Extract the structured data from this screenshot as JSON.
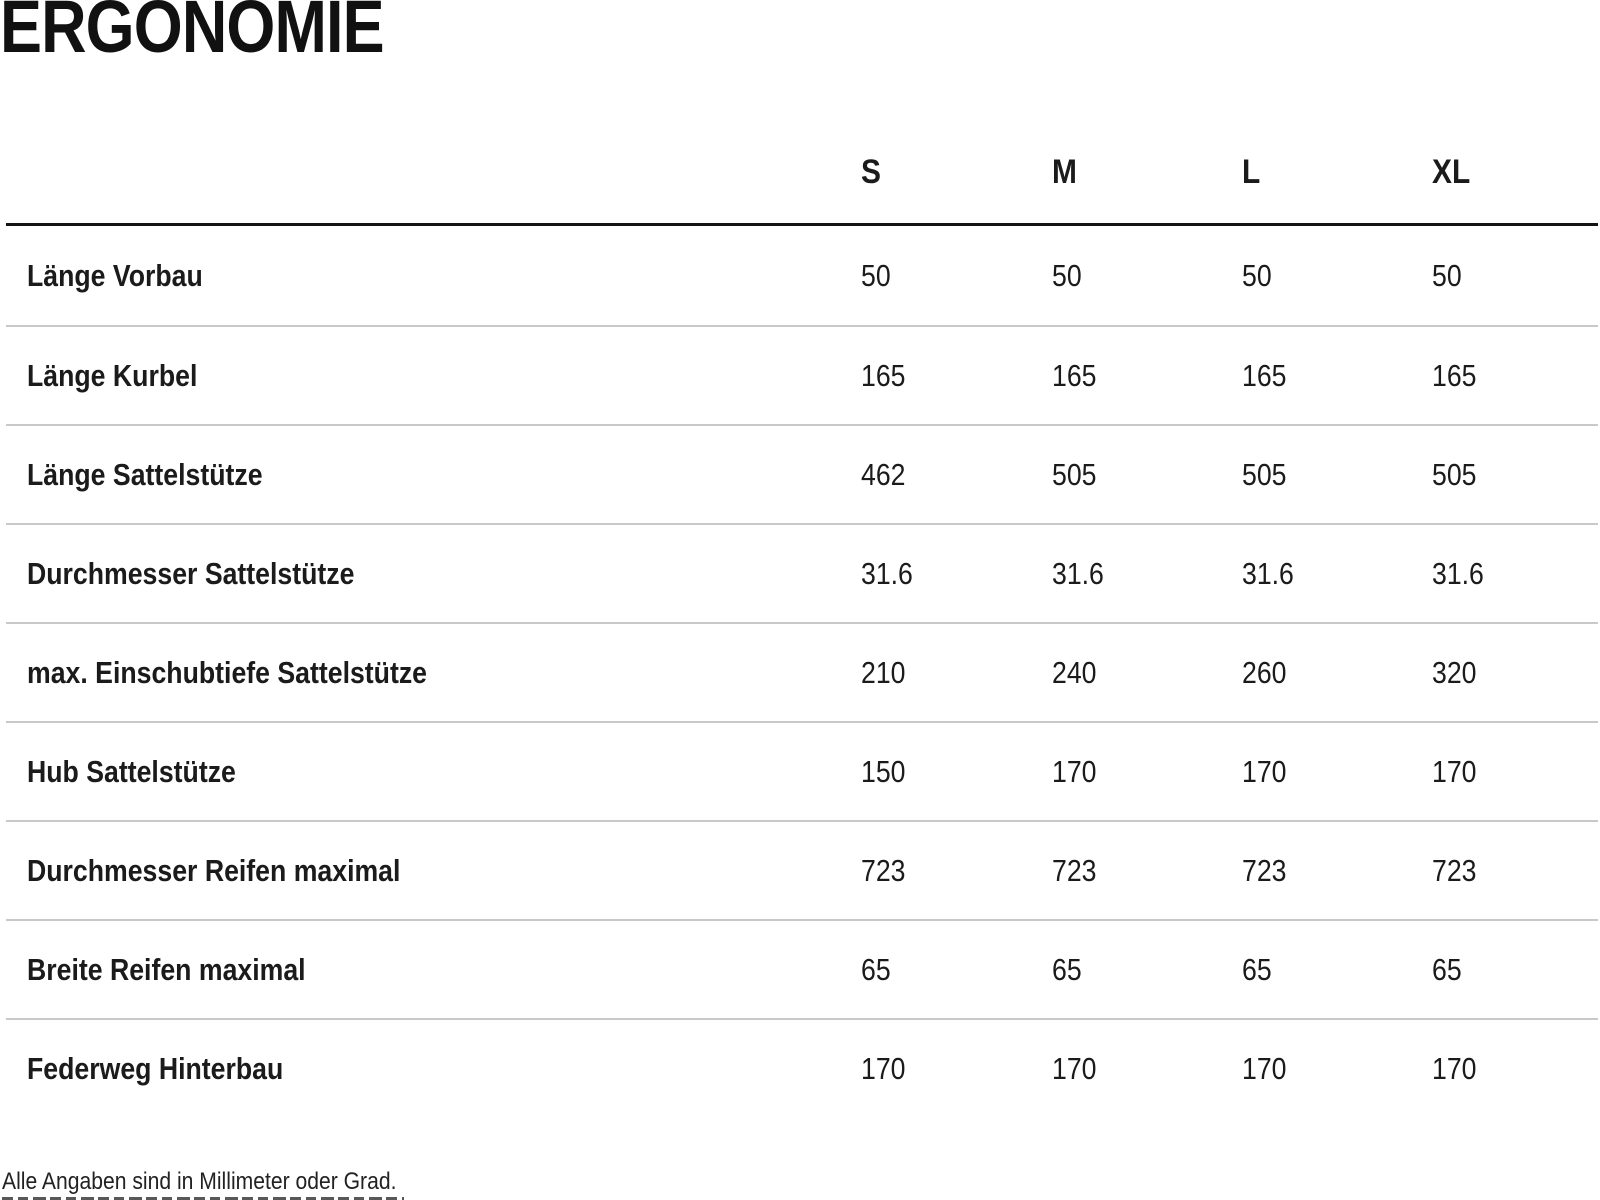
{
  "page": {
    "title": "ERGONOMIE",
    "footnote": "Alle Angaben sind in Millimeter oder Grad."
  },
  "table": {
    "columns": [
      "S",
      "M",
      "L",
      "XL"
    ],
    "rows": [
      {
        "label": "Länge Vorbau",
        "values": [
          "50",
          "50",
          "50",
          "50"
        ]
      },
      {
        "label": "Länge Kurbel",
        "values": [
          "165",
          "165",
          "165",
          "165"
        ]
      },
      {
        "label": "Länge Sattelstütze",
        "values": [
          "462",
          "505",
          "505",
          "505"
        ]
      },
      {
        "label": "Durchmesser Sattelstütze",
        "values": [
          "31.6",
          "31.6",
          "31.6",
          "31.6"
        ]
      },
      {
        "label": "max. Einschubtiefe Sattelstütze",
        "values": [
          "210",
          "240",
          "260",
          "320"
        ]
      },
      {
        "label": "Hub Sattelstütze",
        "values": [
          "150",
          "170",
          "170",
          "170"
        ]
      },
      {
        "label": "Durchmesser Reifen maximal",
        "values": [
          "723",
          "723",
          "723",
          "723"
        ]
      },
      {
        "label": "Breite Reifen maximal",
        "values": [
          "65",
          "65",
          "65",
          "65"
        ]
      },
      {
        "label": "Federweg Hinterbau",
        "values": [
          "170",
          "170",
          "170",
          "170"
        ]
      }
    ]
  },
  "colors": {
    "text": "#1b1b1b",
    "header_rule": "#141414",
    "row_divider": "#c9c9c9"
  }
}
